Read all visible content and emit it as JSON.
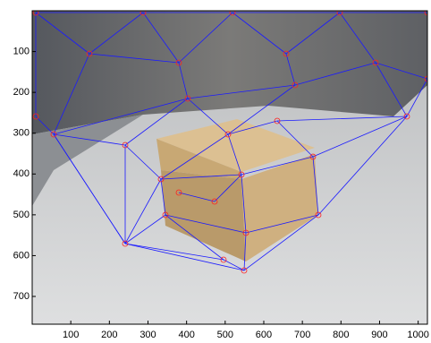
{
  "chart_data": {
    "type": "image",
    "xlim": [
      0,
      1024
    ],
    "ylim": [
      0,
      768
    ],
    "xticks": [
      100,
      200,
      300,
      400,
      500,
      600,
      700,
      800,
      900,
      1000
    ],
    "yticks": [
      100,
      200,
      300,
      400,
      500,
      600,
      700
    ],
    "y_reversed": true
  }
}
